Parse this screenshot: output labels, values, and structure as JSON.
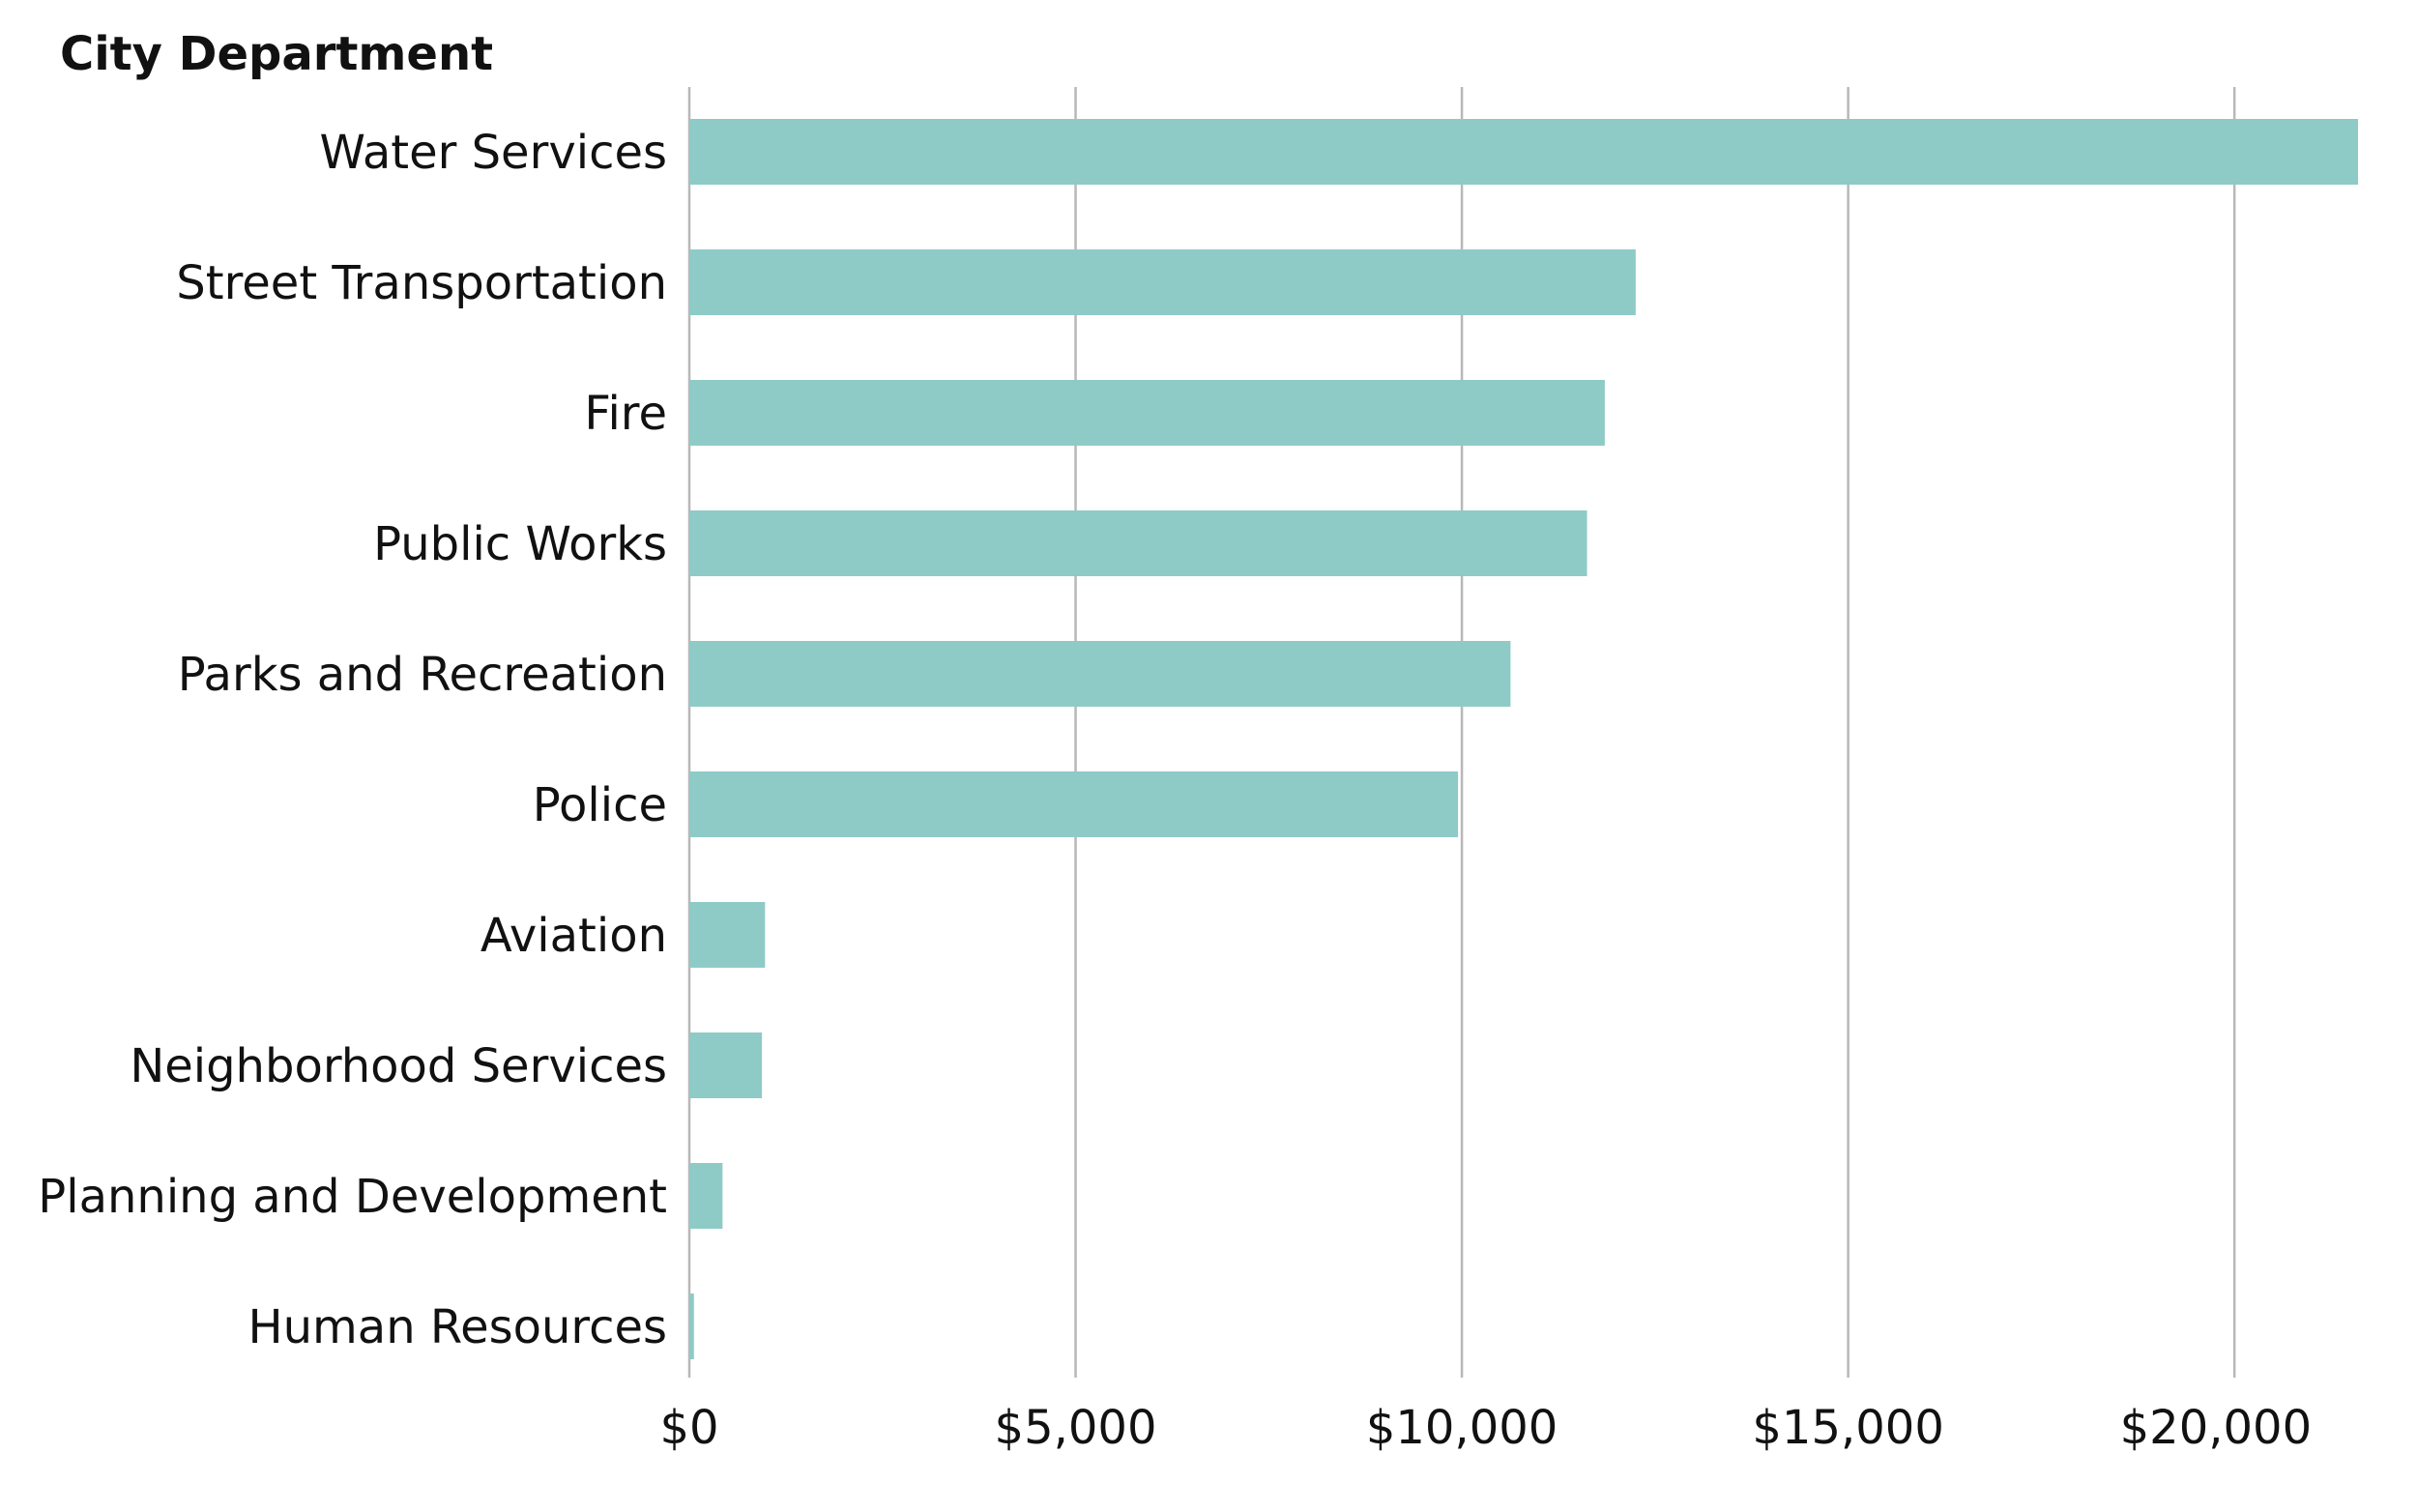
{
  "chart_data": {
    "type": "bar",
    "orientation": "horizontal",
    "title": "",
    "ylabel": "City Department",
    "xlabel": "",
    "categories": [
      "Water Services",
      "Street Transportation",
      "Fire",
      "Public Works",
      "Parks and Recreation",
      "Police",
      "Aviation",
      "Neighborhood Services",
      "Planning and Development",
      "Human Resources"
    ],
    "values": [
      21600,
      12250,
      11850,
      11620,
      10630,
      9950,
      980,
      940,
      430,
      60
    ],
    "xlim": [
      0,
      21600
    ],
    "x_ticks": [
      0,
      5000,
      10000,
      15000,
      20000
    ],
    "x_tick_labels": [
      "$0",
      "$5,000",
      "$10,000",
      "$15,000",
      "$20,000"
    ],
    "bar_color": "#8ecbc7",
    "grid": true,
    "grid_axis": "x",
    "legend": false
  }
}
